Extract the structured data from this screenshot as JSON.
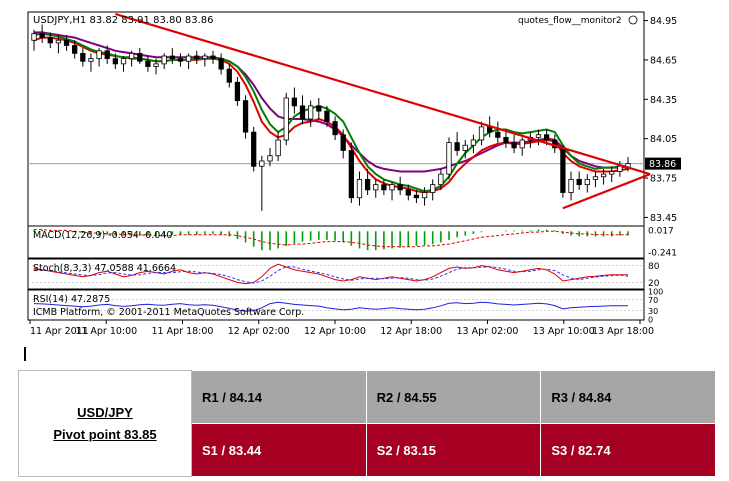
{
  "chart_data": {
    "type": "candlestick",
    "symbol_line": "USDJPY,H1  83.82 83.91 83.80 83.86",
    "indicator_label": "quotes_flow__monitor2",
    "current_price": "83.86",
    "copyright": "ICMB Platform, © 2001-2011 MetaQuotes Software Corp.",
    "y_ticks": [
      "84.95",
      "84.65",
      "84.35",
      "84.05",
      "83.75",
      "83.45"
    ],
    "x_ticks": [
      "11 Apr 2011",
      "11 Apr 10:00",
      "11 Apr 18:00",
      "12 Apr 02:00",
      "12 Apr 10:00",
      "12 Apr 18:00",
      "13 Apr 02:00",
      "13 Apr 10:00",
      "13 Apr 18:00"
    ],
    "ylim": [
      83.4,
      85.0
    ],
    "candles": [
      [
        84.8,
        84.88,
        84.72,
        84.85
      ],
      [
        84.85,
        84.92,
        84.78,
        84.82
      ],
      [
        84.82,
        84.86,
        84.74,
        84.78
      ],
      [
        84.78,
        84.84,
        84.7,
        84.8
      ],
      [
        84.8,
        84.84,
        84.72,
        84.76
      ],
      [
        84.76,
        84.8,
        84.66,
        84.7
      ],
      [
        84.7,
        84.74,
        84.6,
        84.64
      ],
      [
        84.64,
        84.7,
        84.56,
        84.66
      ],
      [
        84.66,
        84.74,
        84.6,
        84.72
      ],
      [
        84.72,
        84.76,
        84.62,
        84.66
      ],
      [
        84.66,
        84.7,
        84.58,
        84.62
      ],
      [
        84.62,
        84.68,
        84.56,
        84.66
      ],
      [
        84.66,
        84.72,
        84.6,
        84.7
      ],
      [
        84.7,
        84.74,
        84.62,
        84.64
      ],
      [
        84.64,
        84.68,
        84.56,
        84.6
      ],
      [
        84.6,
        84.66,
        84.54,
        84.62
      ],
      [
        84.62,
        84.7,
        84.58,
        84.68
      ],
      [
        84.68,
        84.74,
        84.62,
        84.66
      ],
      [
        84.66,
        84.7,
        84.6,
        84.64
      ],
      [
        84.64,
        84.7,
        84.58,
        84.68
      ],
      [
        84.68,
        84.72,
        84.62,
        84.66
      ],
      [
        84.66,
        84.7,
        84.6,
        84.68
      ],
      [
        84.68,
        84.72,
        84.62,
        84.66
      ],
      [
        84.66,
        84.7,
        84.54,
        84.58
      ],
      [
        84.58,
        84.62,
        84.44,
        84.48
      ],
      [
        84.48,
        84.52,
        84.3,
        84.34
      ],
      [
        84.34,
        84.38,
        84.05,
        84.1
      ],
      [
        84.1,
        84.14,
        83.8,
        83.84
      ],
      [
        83.84,
        83.92,
        83.5,
        83.88
      ],
      [
        83.88,
        83.98,
        83.84,
        83.92
      ],
      [
        83.92,
        84.1,
        83.88,
        84.04
      ],
      [
        84.04,
        84.4,
        84.0,
        84.36
      ],
      [
        84.36,
        84.44,
        84.24,
        84.3
      ],
      [
        84.3,
        84.38,
        84.16,
        84.2
      ],
      [
        84.2,
        84.34,
        84.14,
        84.3
      ],
      [
        84.3,
        84.36,
        84.2,
        84.26
      ],
      [
        84.26,
        84.3,
        84.14,
        84.18
      ],
      [
        84.18,
        84.22,
        84.04,
        84.08
      ],
      [
        84.08,
        84.12,
        83.9,
        83.96
      ],
      [
        83.96,
        84.02,
        83.56,
        83.6
      ],
      [
        83.6,
        83.8,
        83.54,
        83.74
      ],
      [
        83.74,
        83.82,
        83.62,
        83.66
      ],
      [
        83.66,
        83.74,
        83.6,
        83.7
      ],
      [
        83.7,
        83.74,
        83.62,
        83.66
      ],
      [
        83.66,
        83.72,
        83.58,
        83.7
      ],
      [
        83.7,
        83.76,
        83.62,
        83.66
      ],
      [
        83.66,
        83.7,
        83.58,
        83.62
      ],
      [
        83.62,
        83.66,
        83.56,
        83.6
      ],
      [
        83.6,
        83.68,
        83.54,
        83.64
      ],
      [
        83.64,
        83.74,
        83.58,
        83.7
      ],
      [
        83.7,
        83.82,
        83.66,
        83.78
      ],
      [
        83.78,
        84.06,
        83.74,
        84.02
      ],
      [
        84.02,
        84.1,
        83.92,
        83.96
      ],
      [
        83.96,
        84.04,
        83.9,
        84.0
      ],
      [
        84.0,
        84.08,
        83.94,
        84.04
      ],
      [
        84.04,
        84.18,
        84.0,
        84.14
      ],
      [
        84.14,
        84.22,
        84.06,
        84.1
      ],
      [
        84.1,
        84.18,
        84.02,
        84.06
      ],
      [
        84.06,
        84.12,
        83.98,
        84.02
      ],
      [
        84.02,
        84.08,
        83.94,
        83.98
      ],
      [
        83.98,
        84.06,
        83.92,
        84.04
      ],
      [
        84.04,
        84.1,
        83.98,
        84.06
      ],
      [
        84.06,
        84.12,
        84.0,
        84.08
      ],
      [
        84.08,
        84.12,
        84.0,
        84.04
      ],
      [
        84.04,
        84.08,
        83.94,
        83.98
      ],
      [
        83.98,
        84.0,
        83.6,
        83.64
      ],
      [
        83.64,
        83.8,
        83.58,
        83.74
      ],
      [
        83.74,
        83.8,
        83.66,
        83.7
      ],
      [
        83.7,
        83.78,
        83.64,
        83.74
      ],
      [
        83.74,
        83.8,
        83.68,
        83.76
      ],
      [
        83.76,
        83.82,
        83.7,
        83.78
      ],
      [
        83.78,
        83.84,
        83.72,
        83.8
      ],
      [
        83.8,
        83.88,
        83.76,
        83.84
      ],
      [
        83.82,
        83.91,
        83.8,
        83.86
      ]
    ],
    "ma_red": [
      84.8,
      84.82,
      84.82,
      84.81,
      84.8,
      84.78,
      84.75,
      84.72,
      84.7,
      84.69,
      84.68,
      84.67,
      84.66,
      84.66,
      84.65,
      84.64,
      84.64,
      84.65,
      84.65,
      84.65,
      84.65,
      84.66,
      84.66,
      84.65,
      84.62,
      84.56,
      84.46,
      84.33,
      84.18,
      84.1,
      84.06,
      84.08,
      84.14,
      84.17,
      84.18,
      84.2,
      84.18,
      84.14,
      84.08,
      83.98,
      83.88,
      83.8,
      83.74,
      83.71,
      83.69,
      83.68,
      83.67,
      83.65,
      83.64,
      83.65,
      83.67,
      83.72,
      83.8,
      83.86,
      83.91,
      83.96,
      83.99,
      84.01,
      84.02,
      84.01,
      84.01,
      84.02,
      84.03,
      84.04,
      84.03,
      83.94,
      83.88,
      83.84,
      83.82,
      83.8,
      83.8,
      83.8,
      83.81,
      83.82
    ],
    "ma_green": [
      84.84,
      84.85,
      84.84,
      84.83,
      84.81,
      84.79,
      84.76,
      84.73,
      84.71,
      84.7,
      84.68,
      84.67,
      84.67,
      84.66,
      84.65,
      84.64,
      84.64,
      84.65,
      84.65,
      84.65,
      84.66,
      84.66,
      84.66,
      84.66,
      84.64,
      84.6,
      84.52,
      84.41,
      84.27,
      84.16,
      84.1,
      84.14,
      84.22,
      84.26,
      84.28,
      84.3,
      84.28,
      84.24,
      84.18,
      84.06,
      83.94,
      83.84,
      83.78,
      83.74,
      83.72,
      83.7,
      83.69,
      83.67,
      83.65,
      83.66,
      83.69,
      83.76,
      83.86,
      83.94,
      84.0,
      84.06,
      84.1,
      84.12,
      84.12,
      84.1,
      84.09,
      84.1,
      84.11,
      84.12,
      84.1,
      84.0,
      83.92,
      83.86,
      83.84,
      83.82,
      83.83,
      83.83,
      83.84,
      83.84
    ],
    "ma_purple": [
      84.86,
      84.86,
      84.85,
      84.84,
      84.83,
      84.82,
      84.8,
      84.78,
      84.76,
      84.74,
      84.72,
      84.71,
      84.7,
      84.69,
      84.68,
      84.67,
      84.67,
      84.67,
      84.67,
      84.67,
      84.67,
      84.67,
      84.67,
      84.66,
      84.64,
      84.6,
      84.54,
      84.46,
      84.36,
      84.28,
      84.22,
      84.2,
      84.2,
      84.2,
      84.19,
      84.18,
      84.16,
      84.12,
      84.07,
      84.0,
      83.94,
      83.88,
      83.84,
      83.82,
      83.81,
      83.8,
      83.8,
      83.8,
      83.8,
      83.81,
      83.82,
      83.84,
      83.86,
      83.88,
      83.91,
      83.94,
      83.97,
      84.0,
      84.02,
      84.02,
      84.02,
      84.03,
      84.04,
      84.05,
      84.04,
      83.98,
      83.92,
      83.88,
      83.86,
      83.84,
      83.83,
      83.83,
      83.83,
      83.84
    ],
    "trendlines": [
      {
        "from": [
          10,
          85.0
        ],
        "to": [
          74,
          83.78
        ],
        "color": "#e00000"
      },
      {
        "from": [
          65,
          83.52
        ],
        "to": [
          74,
          83.78
        ],
        "color": "#e00000"
      }
    ],
    "horizontal_line": 83.86,
    "macd": {
      "label": "MACD(12,26,9) -0.054 -0.040",
      "ticks": [
        "0.017",
        "-0.241"
      ],
      "ylim": [
        -0.3,
        0.05
      ],
      "histogram": [
        0.02,
        0.02,
        0.01,
        0.01,
        0.0,
        -0.01,
        -0.02,
        -0.03,
        -0.04,
        -0.04,
        -0.05,
        -0.05,
        -0.05,
        -0.05,
        -0.05,
        -0.05,
        -0.05,
        -0.04,
        -0.04,
        -0.04,
        -0.04,
        -0.03,
        -0.03,
        -0.04,
        -0.06,
        -0.09,
        -0.13,
        -0.18,
        -0.22,
        -0.22,
        -0.2,
        -0.17,
        -0.14,
        -0.12,
        -0.11,
        -0.1,
        -0.1,
        -0.11,
        -0.13,
        -0.17,
        -0.2,
        -0.22,
        -0.22,
        -0.21,
        -0.2,
        -0.19,
        -0.18,
        -0.17,
        -0.16,
        -0.15,
        -0.13,
        -0.1,
        -0.07,
        -0.05,
        -0.03,
        -0.01,
        0.0,
        0.0,
        0.01,
        0.01,
        0.01,
        0.01,
        0.02,
        0.02,
        0.01,
        -0.03,
        -0.05,
        -0.06,
        -0.06,
        -0.06,
        -0.06,
        -0.06,
        -0.05,
        -0.05
      ],
      "signal": [
        0.02,
        0.02,
        0.01,
        0.01,
        0.01,
        0.0,
        -0.01,
        -0.02,
        -0.02,
        -0.03,
        -0.03,
        -0.04,
        -0.04,
        -0.04,
        -0.04,
        -0.05,
        -0.05,
        -0.05,
        -0.04,
        -0.04,
        -0.04,
        -0.04,
        -0.04,
        -0.04,
        -0.04,
        -0.05,
        -0.07,
        -0.09,
        -0.12,
        -0.14,
        -0.15,
        -0.16,
        -0.15,
        -0.15,
        -0.14,
        -0.13,
        -0.12,
        -0.12,
        -0.12,
        -0.13,
        -0.14,
        -0.16,
        -0.17,
        -0.18,
        -0.18,
        -0.18,
        -0.18,
        -0.18,
        -0.17,
        -0.17,
        -0.16,
        -0.15,
        -0.13,
        -0.11,
        -0.09,
        -0.07,
        -0.06,
        -0.05,
        -0.04,
        -0.03,
        -0.02,
        -0.01,
        -0.01,
        0.0,
        0.0,
        -0.01,
        -0.02,
        -0.03,
        -0.03,
        -0.04,
        -0.04,
        -0.04,
        -0.04,
        -0.04
      ]
    },
    "stoch": {
      "label": "Stoch(8,3,3) 47.0588 41.6664",
      "ticks": [
        "80",
        "20"
      ],
      "ylim": [
        0,
        100
      ],
      "main": [
        70,
        65,
        60,
        55,
        50,
        45,
        40,
        45,
        55,
        60,
        50,
        40,
        45,
        55,
        60,
        55,
        50,
        60,
        65,
        55,
        50,
        55,
        50,
        40,
        30,
        20,
        15,
        20,
        40,
        70,
        85,
        75,
        65,
        60,
        55,
        50,
        40,
        30,
        25,
        30,
        40,
        35,
        30,
        35,
        40,
        35,
        30,
        25,
        30,
        40,
        55,
        70,
        75,
        70,
        72,
        80,
        75,
        65,
        60,
        55,
        60,
        65,
        70,
        65,
        50,
        25,
        30,
        35,
        40,
        42,
        45,
        47,
        47,
        47
      ],
      "signal": [
        65,
        64,
        62,
        58,
        54,
        50,
        46,
        44,
        48,
        54,
        55,
        50,
        46,
        47,
        52,
        56,
        55,
        55,
        58,
        60,
        57,
        54,
        52,
        48,
        40,
        30,
        22,
        18,
        25,
        42,
        62,
        76,
        75,
        67,
        60,
        55,
        48,
        40,
        32,
        28,
        32,
        35,
        35,
        33,
        35,
        37,
        35,
        30,
        28,
        32,
        42,
        55,
        67,
        72,
        72,
        74,
        76,
        73,
        67,
        60,
        58,
        60,
        65,
        67,
        62,
        47,
        35,
        30,
        35,
        39,
        42,
        44,
        46,
        42
      ]
    },
    "rsi": {
      "label": "RSI(14) 47.2875",
      "ticks": [
        "100",
        "70",
        "30",
        "0"
      ],
      "ylim": [
        0,
        100
      ],
      "values": [
        55,
        54,
        52,
        50,
        48,
        46,
        44,
        46,
        50,
        52,
        48,
        45,
        47,
        51,
        53,
        50,
        49,
        53,
        55,
        51,
        49,
        51,
        49,
        44,
        38,
        32,
        28,
        30,
        40,
        55,
        60,
        56,
        52,
        50,
        48,
        46,
        40,
        36,
        33,
        35,
        40,
        37,
        35,
        37,
        40,
        37,
        35,
        33,
        35,
        40,
        47,
        56,
        58,
        55,
        56,
        60,
        58,
        54,
        52,
        50,
        52,
        54,
        56,
        54,
        48,
        36,
        40,
        42,
        44,
        45,
        46,
        47,
        47,
        47
      ]
    }
  },
  "pivot": {
    "pair": "USD/JPY",
    "pivot_label": "Pivot point 83.85",
    "r1": "R1 / 84.14",
    "r2": "R2 / 84.55",
    "r3": "R3 / 84.84",
    "s1": "S1 / 83.44",
    "s2": "S2 / 83.15",
    "s3": "S3 / 82.74"
  }
}
